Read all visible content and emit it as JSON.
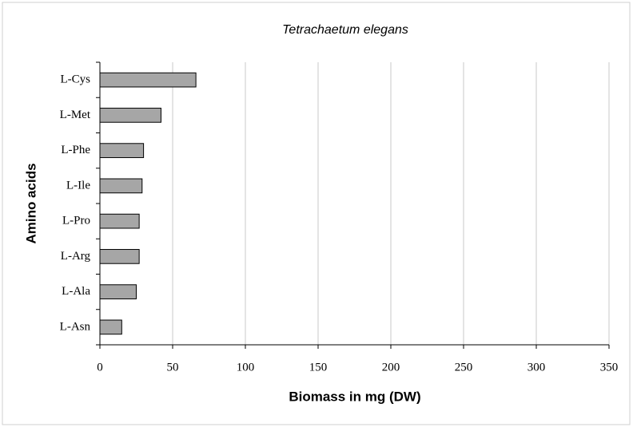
{
  "chart_data": {
    "type": "bar",
    "orientation": "horizontal",
    "title": "Tetrachaetum elegans",
    "xlabel": "Biomass in mg (DW)",
    "ylabel": "Amino acids",
    "categories": [
      "L-Cys",
      "L-Met",
      "L-Phe",
      "L-Ile",
      "L-Pro",
      "L-Arg",
      "L-Ala",
      "L-Asn"
    ],
    "values": [
      66,
      42,
      30,
      29,
      27,
      27,
      25,
      15
    ],
    "color": "#a6a6a6",
    "xlim": [
      0,
      350
    ],
    "xticks": [
      0,
      50,
      100,
      150,
      200,
      250,
      300,
      350
    ],
    "grid": true
  }
}
